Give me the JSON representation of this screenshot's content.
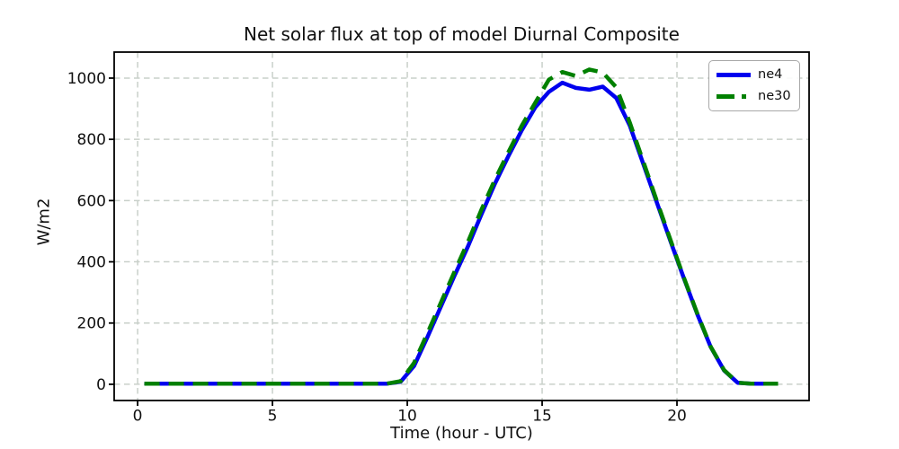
{
  "figure": {
    "background": "#ffffff"
  },
  "chart_data": {
    "type": "line",
    "title": "Net solar flux at top of model Diurnal Composite",
    "xlabel": "Time (hour - UTC)",
    "ylabel": "W/m2",
    "xlim": [
      -0.87,
      24.9
    ],
    "ylim": [
      -53,
      1085
    ],
    "xticks": [
      0,
      5,
      10,
      15,
      20
    ],
    "yticks": [
      0,
      200,
      400,
      600,
      800,
      1000
    ],
    "grid": true,
    "grid_style": "dashed",
    "grid_color": "#c9d0ca",
    "axis_color": "#000000",
    "legend_position": "upper right",
    "x": [
      0.25,
      0.75,
      1.25,
      1.75,
      2.25,
      2.75,
      3.25,
      3.75,
      4.25,
      4.75,
      5.25,
      5.75,
      6.25,
      6.75,
      7.25,
      7.75,
      8.25,
      8.75,
      9.25,
      9.75,
      10.25,
      10.75,
      11.25,
      11.75,
      12.25,
      12.75,
      13.25,
      13.75,
      14.25,
      14.75,
      15.25,
      15.75,
      16.25,
      16.75,
      17.25,
      17.75,
      18.25,
      18.75,
      19.25,
      19.75,
      20.25,
      20.75,
      21.25,
      21.75,
      22.25,
      22.75,
      23.25,
      23.75
    ],
    "series": [
      {
        "name": "ne4",
        "color": "#0000ee",
        "line_style": "solid",
        "line_width": 4.5,
        "values": [
          2,
          2,
          2,
          2,
          2,
          2,
          2,
          2,
          2,
          2,
          2,
          2,
          2,
          2,
          2,
          2,
          2,
          2,
          2,
          8,
          60,
          155,
          255,
          355,
          450,
          555,
          655,
          745,
          830,
          905,
          955,
          985,
          968,
          962,
          972,
          935,
          845,
          720,
          595,
          470,
          348,
          230,
          122,
          45,
          5,
          2,
          2,
          2
        ]
      },
      {
        "name": "ne30",
        "color": "#008000",
        "line_style": "dashed",
        "line_width": 4.5,
        "values": [
          2,
          2,
          2,
          2,
          2,
          2,
          2,
          2,
          2,
          2,
          2,
          2,
          2,
          2,
          2,
          2,
          2,
          2,
          2,
          10,
          70,
          168,
          268,
          368,
          465,
          570,
          668,
          758,
          845,
          920,
          995,
          1020,
          1007,
          1028,
          1018,
          970,
          855,
          728,
          600,
          474,
          350,
          232,
          123,
          46,
          5,
          2,
          2,
          2
        ]
      }
    ]
  }
}
